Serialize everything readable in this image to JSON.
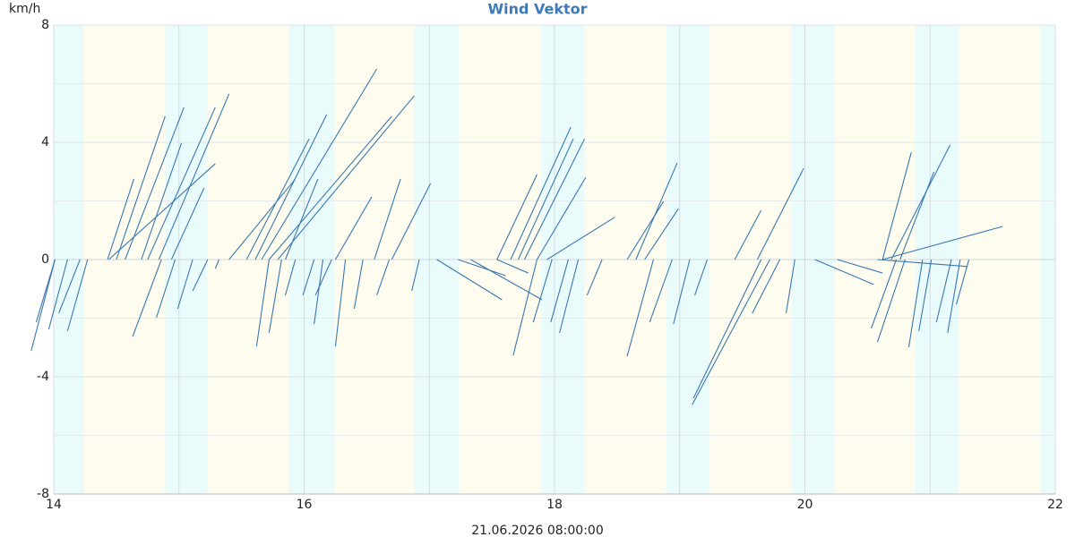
{
  "chart_data": {
    "type": "vector",
    "title": "Wind Vektor",
    "y_label": "km/h",
    "x_label": "21.06.2026 08:00:00",
    "color": "#3a78b0",
    "xlim": [
      14,
      22
    ],
    "xticks": [
      14,
      16,
      18,
      20,
      22
    ],
    "x_gridlines": [
      15,
      17,
      19,
      21
    ],
    "ylim": [
      -8,
      8
    ],
    "yticks": [
      -8,
      -4,
      0,
      4,
      8
    ],
    "y_gridlines": [
      -6,
      -2,
      2,
      6
    ],
    "grid": true,
    "night_bands": [
      [
        14.0,
        14.24
      ],
      [
        14.89,
        15.23
      ],
      [
        15.88,
        16.24
      ],
      [
        16.88,
        17.24
      ],
      [
        17.89,
        18.24
      ],
      [
        18.89,
        19.24
      ],
      [
        19.89,
        20.24
      ],
      [
        20.88,
        21.23
      ],
      [
        21.88,
        22.0
      ]
    ],
    "day_bands": [
      [
        14.24,
        14.89
      ],
      [
        15.23,
        15.88
      ],
      [
        16.24,
        16.88
      ],
      [
        17.24,
        17.89
      ],
      [
        18.24,
        18.89
      ],
      [
        19.24,
        19.89
      ],
      [
        20.24,
        20.88
      ],
      [
        21.23,
        21.88
      ]
    ],
    "night_color": "#eafbfc",
    "day_color": "#fdfcee",
    "x": [
      14.01,
      14.11,
      14.21,
      14.27,
      14.43,
      14.5,
      14.57,
      14.7,
      14.75,
      14.84,
      14.94,
      14.44,
      14.86,
      14.97,
      15.11,
      15.23,
      15.4,
      15.54,
      15.61,
      15.66,
      15.72,
      15.79,
      15.85,
      16.25,
      16.56,
      16.7,
      15.72,
      15.82,
      15.93,
      16.08,
      16.22,
      16.15,
      16.33,
      16.47,
      16.68,
      16.92,
      17.06,
      17.23,
      17.33,
      17.54,
      17.54,
      17.65,
      17.71,
      17.76,
      17.86,
      17.94,
      17.86,
      17.98,
      18.11,
      18.19,
      18.38,
      18.58,
      18.65,
      18.72,
      18.79,
      18.94,
      19.08,
      19.22,
      19.72,
      19.65,
      19.8,
      19.92,
      19.44,
      19.62,
      20.08,
      20.26,
      20.62,
      20.69,
      20.76,
      20.62,
      20.58,
      20.73,
      20.8,
      20.94,
      21.01,
      21.17,
      21.24,
      21.31,
      14.01,
      15.32
    ],
    "x_end": [
      13.82,
      13.96,
      14.04,
      14.11,
      14.64,
      14.89,
      15.04,
      15.02,
      15.29,
      15.4,
      15.2,
      15.29,
      14.63,
      14.82,
      14.99,
      15.11,
      15.93,
      16.04,
      16.18,
      16.58,
      16.7,
      16.88,
      16.11,
      16.54,
      16.77,
      17.01,
      15.62,
      15.72,
      15.85,
      15.99,
      16.09,
      16.08,
      16.25,
      16.4,
      16.58,
      16.86,
      17.58,
      17.61,
      17.9,
      17.79,
      17.86,
      18.13,
      18.15,
      18.24,
      18.25,
      18.48,
      17.67,
      17.83,
      17.97,
      18.04,
      18.26,
      18.87,
      18.98,
      18.99,
      18.58,
      18.76,
      18.95,
      19.12,
      19.1,
      19.11,
      19.58,
      19.85,
      19.65,
      19.99,
      20.55,
      20.62,
      20.85,
      21.16,
      21.03,
      21.58,
      21.3,
      20.53,
      20.58,
      20.83,
      20.91,
      21.05,
      21.14,
      21.21,
      13.86,
      15.29
    ],
    "values": [
      -3.11,
      -2.38,
      -1.83,
      -2.44,
      2.75,
      4.89,
      5.19,
      3.97,
      5.19,
      5.65,
      2.44,
      3.27,
      -2.63,
      -1.98,
      -1.68,
      -1.07,
      2.75,
      4.12,
      4.95,
      6.5,
      4.89,
      5.59,
      2.75,
      2.14,
      2.75,
      2.6,
      -2.96,
      -2.5,
      -1.22,
      -1.22,
      -1.22,
      -2.2,
      -2.96,
      -1.68,
      -1.22,
      -1.07,
      -1.37,
      -0.55,
      -1.37,
      -0.46,
      2.9,
      4.52,
      4.12,
      4.12,
      2.81,
      1.44,
      -3.27,
      -2.14,
      -2.14,
      -2.5,
      -1.22,
      1.98,
      3.3,
      1.74,
      -3.3,
      -2.14,
      -2.2,
      -1.22,
      -4.95,
      -4.73,
      -1.83,
      -1.83,
      1.68,
      3.11,
      -0.85,
      -0.46,
      3.66,
      3.91,
      2.99,
      1.13,
      -0.24,
      -2.35,
      -2.81,
      -2.99,
      -2.44,
      -2.14,
      -2.5,
      -1.53,
      -2.14,
      -0.31
    ]
  }
}
